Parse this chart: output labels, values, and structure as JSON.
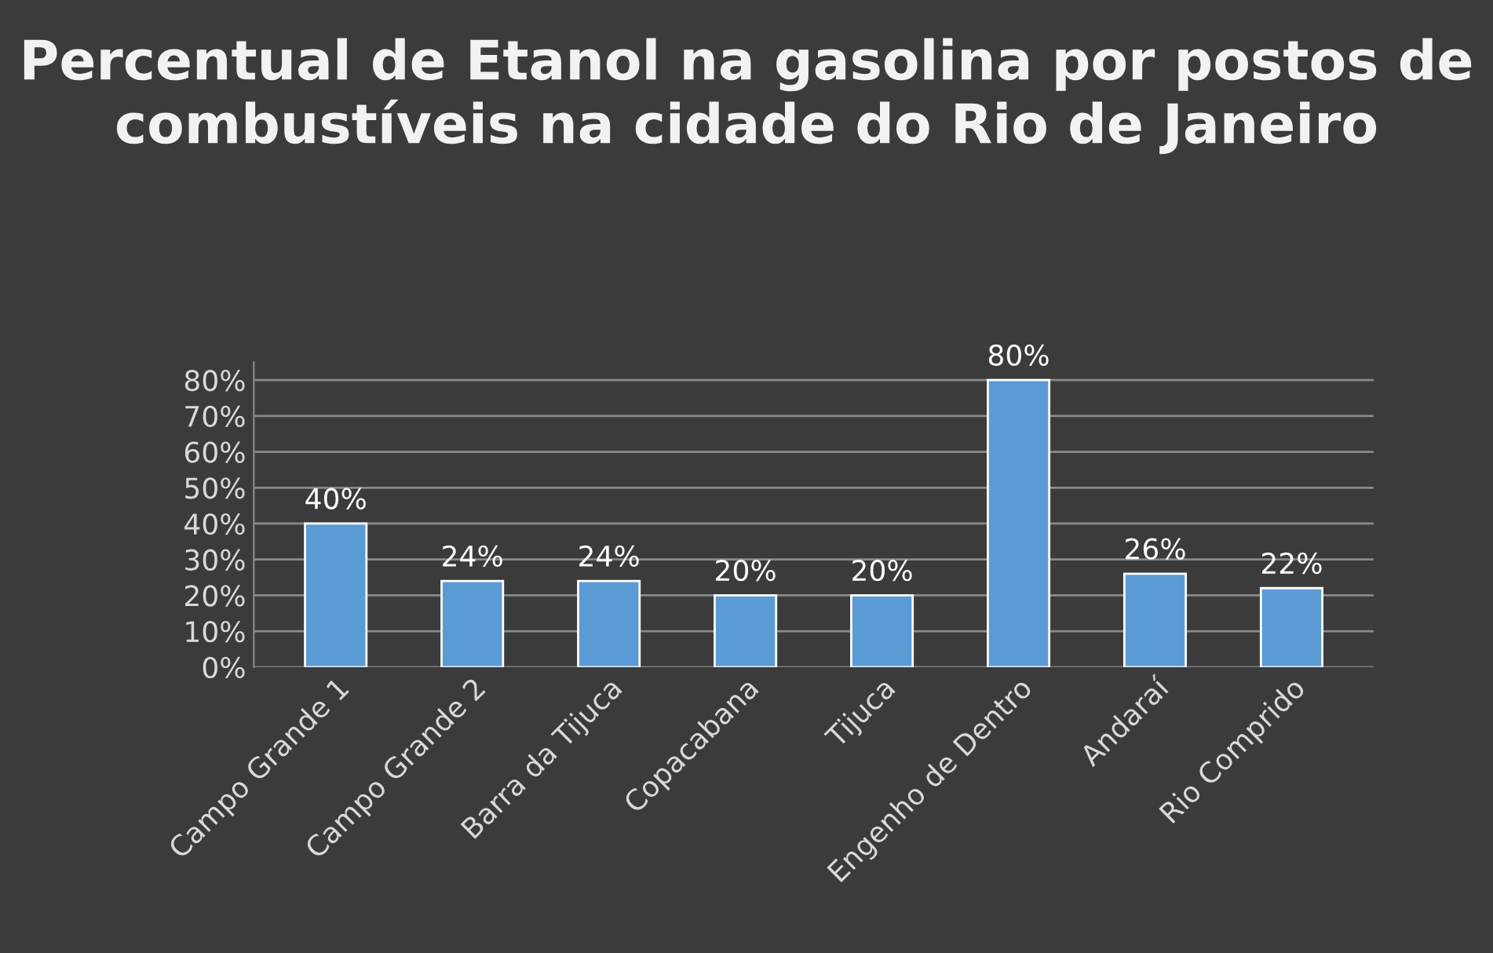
{
  "chart_data": {
    "type": "bar",
    "title": "Percentual de Etanol na gasolina por postos de combustíveis na cidade do Rio de Janeiro",
    "categories": [
      "Campo Grande 1",
      "Campo Grande 2",
      "Barra da Tijuca",
      "Copacabana",
      "Tijuca",
      "Engenho de Dentro",
      "Andaraí",
      "Rio Comprido"
    ],
    "values": [
      40,
      24,
      24,
      20,
      20,
      80,
      26,
      22
    ],
    "value_labels": [
      "40%",
      "24%",
      "24%",
      "20%",
      "20%",
      "80%",
      "26%",
      "22%"
    ],
    "color": "#5b9bd5",
    "ylim": [
      0,
      85
    ],
    "yticks": [
      {
        "value": 0,
        "label": "0%"
      },
      {
        "value": 10,
        "label": "10%"
      },
      {
        "value": 20,
        "label": "20%"
      },
      {
        "value": 30,
        "label": "30%"
      },
      {
        "value": 40,
        "label": "40%"
      },
      {
        "value": 50,
        "label": "50%"
      },
      {
        "value": 60,
        "label": "60%"
      },
      {
        "value": 70,
        "label": "70%"
      },
      {
        "value": 80,
        "label": "80%"
      }
    ],
    "grid": "y"
  }
}
